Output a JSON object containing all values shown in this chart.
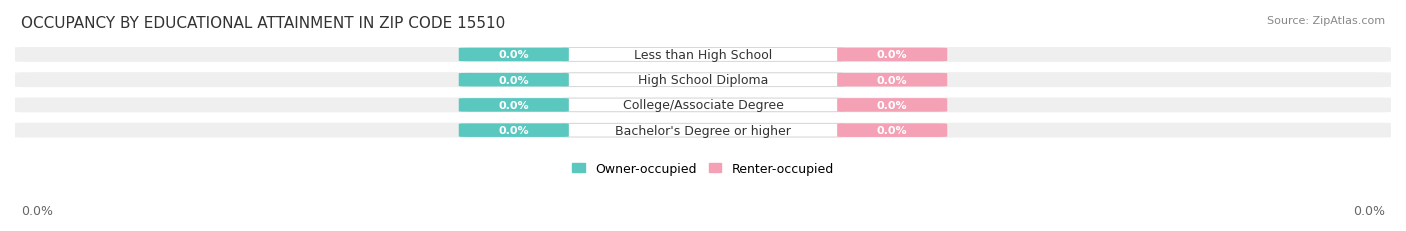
{
  "title": "OCCUPANCY BY EDUCATIONAL ATTAINMENT IN ZIP CODE 15510",
  "source": "Source: ZipAtlas.com",
  "categories": [
    "Less than High School",
    "High School Diploma",
    "College/Associate Degree",
    "Bachelor's Degree or higher"
  ],
  "owner_values": [
    0.0,
    0.0,
    0.0,
    0.0
  ],
  "renter_values": [
    0.0,
    0.0,
    0.0,
    0.0
  ],
  "owner_color": "#5BC8C0",
  "renter_color": "#F4A0B5",
  "bar_bg_color": "#EFEFEF",
  "background_color": "#FFFFFF",
  "title_fontsize": 11,
  "source_fontsize": 8,
  "label_fontsize": 9,
  "value_fontsize": 8,
  "legend_fontsize": 9,
  "axis_label_left": "0.0%",
  "axis_label_right": "0.0%",
  "figsize": [
    14.06,
    2.32
  ],
  "dpi": 100
}
